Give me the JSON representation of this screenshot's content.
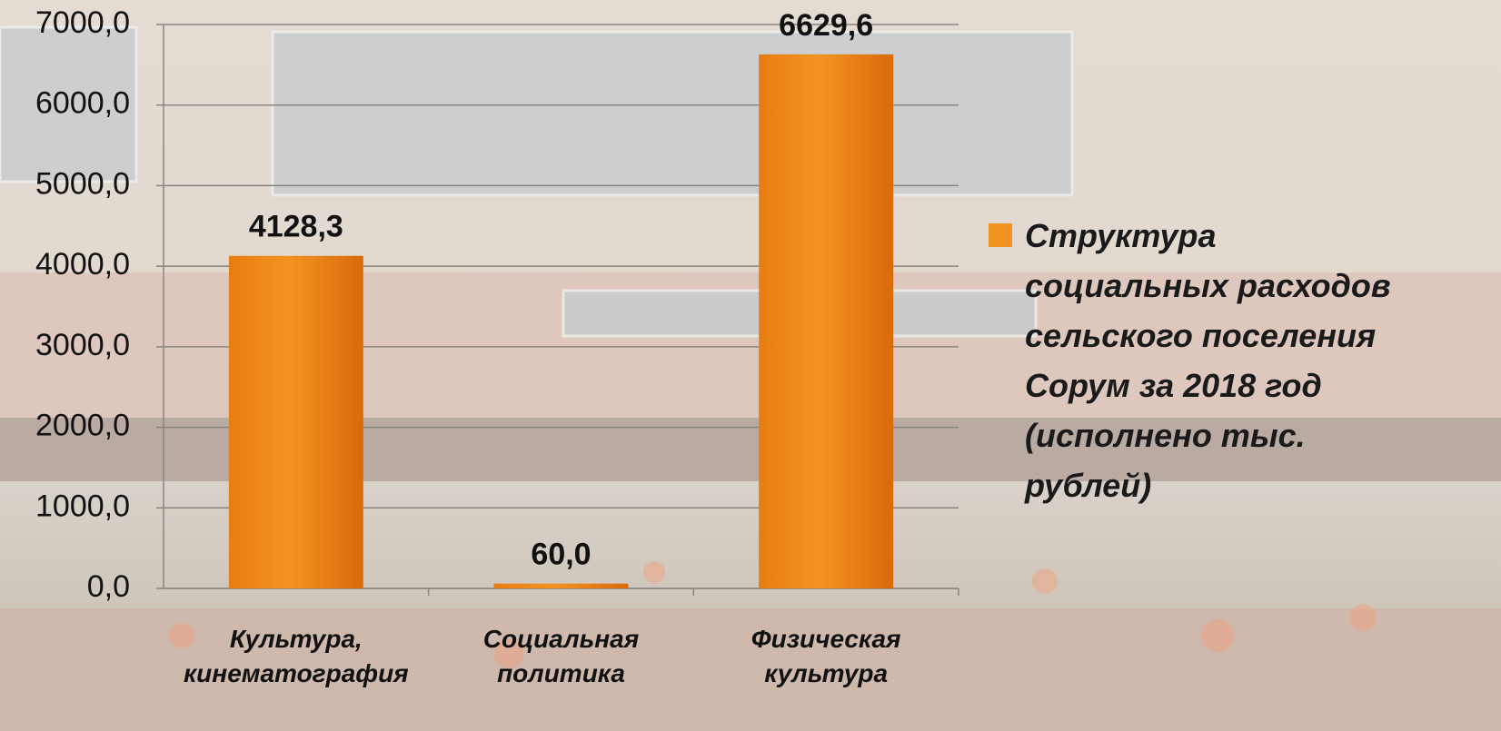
{
  "chart_data": {
    "type": "bar",
    "categories": [
      "Культура, кинематография",
      "Социальная политика",
      "Физическая культура"
    ],
    "series": [
      {
        "name": "Структура социальных расходов сельского поселения Сорум за 2018 год (исполнено тыс. рублей)",
        "color": "#f39322",
        "values": [
          4128.3,
          60.0,
          6629.6
        ],
        "value_labels": [
          "4128,3",
          "60,0",
          "6629,6"
        ]
      }
    ],
    "ylim": [
      0,
      7000
    ],
    "yticks": [
      {
        "value": 0,
        "label": "0,0"
      },
      {
        "value": 1000,
        "label": "1000,0"
      },
      {
        "value": 2000,
        "label": "2000,0"
      },
      {
        "value": 3000,
        "label": "3000,0"
      },
      {
        "value": 4000,
        "label": "4000,0"
      },
      {
        "value": 5000,
        "label": "5000,0"
      },
      {
        "value": 6000,
        "label": "6000,0"
      },
      {
        "value": 7000,
        "label": "7000,0"
      }
    ],
    "grid": true,
    "legend": "right"
  }
}
